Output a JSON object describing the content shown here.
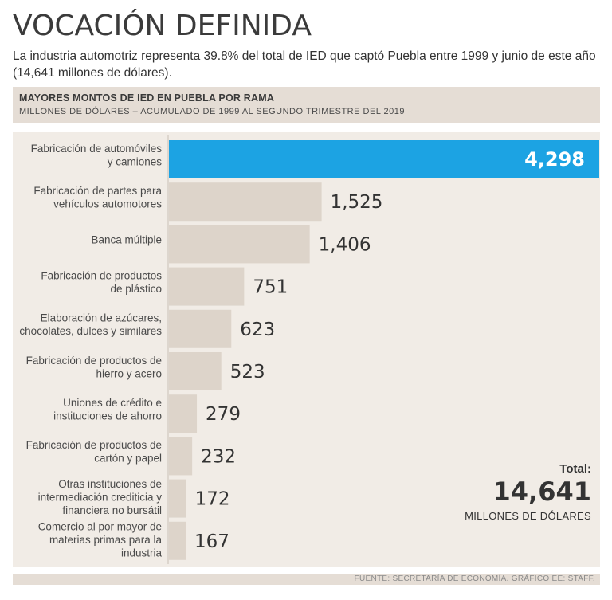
{
  "header": {
    "title": "VOCACIÓN DEFINIDA",
    "subtitle": "La industria automotriz representa 39.8% del total de IED que captó Puebla entre 1999 y junio de este año (14,641 millones de dólares)."
  },
  "banner": {
    "title": "MAYORES MONTOS DE IED EN PUEBLA POR RAMA",
    "subtitle": "MILLONES DE DÓLARES – ACUMULADO DE 1999 AL SEGUNDO TRIMESTRE DEL 2019"
  },
  "total": {
    "label": "Total:",
    "value": "14,641",
    "unit": "MILLONES DE DÓLARES"
  },
  "footer": {
    "source": "FUENTE: SECRETARÍA DE ECONOMÍA. GRÁFICO EE: STAFF."
  },
  "colors": {
    "highlight": "#1ca3e3",
    "bar": "#ddd4ca",
    "panel": "#f1ece6"
  },
  "chart_data": {
    "type": "bar",
    "orientation": "horizontal",
    "categories": [
      [
        "Fabricación de automóviles",
        "y camiones"
      ],
      [
        "Fabricación de partes para",
        "vehículos automotores"
      ],
      [
        "Banca múltiple"
      ],
      [
        "Fabricación de productos",
        "de plástico"
      ],
      [
        "Elaboración de azúcares,",
        "chocolates, dulces y similares"
      ],
      [
        "Fabricación de productos de",
        "hierro y acero"
      ],
      [
        "Uniones de crédito e",
        "instituciones de ahorro"
      ],
      [
        "Fabricación de productos de",
        "cartón y papel"
      ],
      [
        "Otras instituciones de",
        "intermediación crediticia y",
        "financiera no bursátil"
      ],
      [
        "Comercio al por mayor de",
        "materias primas para la",
        "industria"
      ]
    ],
    "values": [
      4298,
      1525,
      1406,
      751,
      623,
      523,
      279,
      232,
      172,
      167
    ],
    "value_labels": [
      "4,298",
      "1,525",
      "1,406",
      "751",
      "623",
      "523",
      "279",
      "232",
      "172",
      "167"
    ],
    "highlight_index": 0,
    "xlim": [
      0,
      4298
    ]
  }
}
